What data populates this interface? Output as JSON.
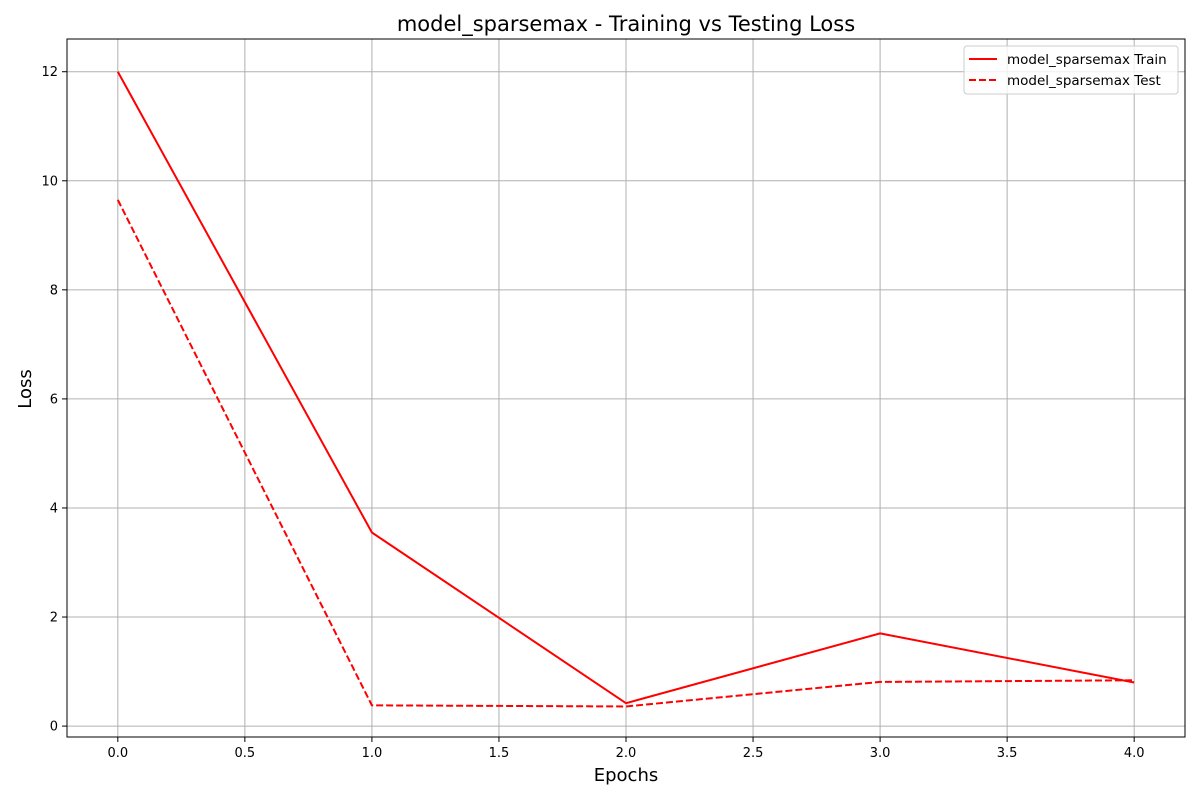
{
  "chart_data": {
    "type": "line",
    "title": "model_sparsemax - Training vs Testing Loss",
    "xlabel": "Epochs",
    "ylabel": "Loss",
    "x": [
      0,
      1,
      2,
      3,
      4
    ],
    "xlim": [
      -0.2,
      4.2
    ],
    "ylim": [
      -0.2,
      12.6
    ],
    "xticks": [
      0.0,
      0.5,
      1.0,
      1.5,
      2.0,
      2.5,
      3.0,
      3.5,
      4.0
    ],
    "xtick_labels": [
      "0.0",
      "0.5",
      "1.0",
      "1.5",
      "2.0",
      "2.5",
      "3.0",
      "3.5",
      "4.0"
    ],
    "yticks": [
      0,
      2,
      4,
      6,
      8,
      10,
      12
    ],
    "ytick_labels": [
      "0",
      "2",
      "4",
      "6",
      "8",
      "10",
      "12"
    ],
    "grid": true,
    "legend_position": "top-right",
    "series": [
      {
        "name": "model_sparsemax Train",
        "values": [
          12.0,
          3.55,
          0.42,
          1.7,
          0.8
        ],
        "color": "#ff0000",
        "line_style": "solid"
      },
      {
        "name": "model_sparsemax Test",
        "values": [
          9.65,
          0.38,
          0.36,
          0.81,
          0.84
        ],
        "color": "#ff0000",
        "line_style": "dashed"
      }
    ]
  }
}
